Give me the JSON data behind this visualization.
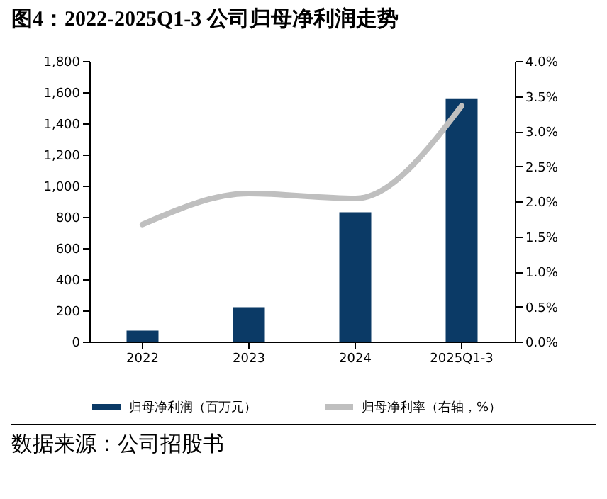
{
  "chart_data": {
    "type": "bar",
    "title": "图4：2022-2025Q1-3 公司归母净利润走势",
    "categories": [
      "2022",
      "2023",
      "2024",
      "2025Q1-3"
    ],
    "series": [
      {
        "name": "归母净利润（百万元）",
        "color": "#0b3a66",
        "values": [
          70,
          220,
          830,
          1560
        ]
      },
      {
        "name": "归母净利率（右轴，%）",
        "type": "line",
        "axis": "y2",
        "color": "#bfbfbf",
        "values": [
          1.67,
          2.11,
          2.04,
          3.36
        ]
      }
    ],
    "ylim": [
      0,
      1800
    ],
    "yticks": [
      0,
      200,
      400,
      600,
      800,
      {
        "value": 1000,
        "label": "1,000"
      },
      {
        "value": 1200,
        "label": "1,200"
      },
      {
        "value": 1400,
        "label": "1,400"
      },
      {
        "value": 1600,
        "label": "1,600"
      },
      {
        "value": 1800,
        "label": "1,800"
      }
    ],
    "y2lim": [
      0,
      4
    ],
    "y2ticks": [
      {
        "value": 0,
        "label": "0.0%"
      },
      {
        "value": 0.5,
        "label": "0.5%"
      },
      {
        "value": 1,
        "label": "1.0%"
      },
      {
        "value": 1.5,
        "label": "1.5%"
      },
      {
        "value": 2,
        "label": "2.0%"
      },
      {
        "value": 2.5,
        "label": "2.5%"
      },
      {
        "value": 3,
        "label": "3.0%"
      },
      {
        "value": 3.5,
        "label": "3.5%"
      },
      {
        "value": 4,
        "label": "4.0%"
      }
    ],
    "grid": false,
    "legend": "bottom",
    "marker": "none",
    "annotations": [
      "数据来源：公司招股书"
    ]
  }
}
